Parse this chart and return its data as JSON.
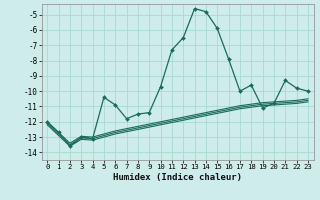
{
  "xlabel": "Humidex (Indice chaleur)",
  "xlim": [
    -0.5,
    23.5
  ],
  "ylim": [
    -14.5,
    -4.3
  ],
  "yticks": [
    -14,
    -13,
    -12,
    -11,
    -10,
    -9,
    -8,
    -7,
    -6,
    -5
  ],
  "xticks": [
    0,
    1,
    2,
    3,
    4,
    5,
    6,
    7,
    8,
    9,
    10,
    11,
    12,
    13,
    14,
    15,
    16,
    17,
    18,
    19,
    20,
    21,
    22,
    23
  ],
  "bg_color": "#ceecea",
  "grid_color": "#aad8d4",
  "line_color": "#1a6b5a",
  "main_line_x": [
    0,
    1,
    2,
    3,
    4,
    5,
    6,
    7,
    8,
    9,
    10,
    11,
    12,
    13,
    14,
    15,
    16,
    17,
    18,
    19,
    20,
    21,
    22,
    23
  ],
  "main_line_y": [
    -12.0,
    -12.7,
    -13.6,
    -13.0,
    -13.1,
    -10.4,
    -10.9,
    -11.8,
    -11.5,
    -11.4,
    -9.7,
    -7.3,
    -6.5,
    -4.6,
    -4.8,
    -5.9,
    -7.9,
    -10.0,
    -9.6,
    -11.1,
    -10.8,
    -9.3,
    -9.8,
    -10.0
  ],
  "band_lines": [
    [
      -12.0,
      -12.7,
      -13.4,
      -12.95,
      -13.0,
      -12.8,
      -12.6,
      -12.45,
      -12.3,
      -12.15,
      -12.0,
      -11.85,
      -11.7,
      -11.55,
      -11.4,
      -11.25,
      -11.1,
      -10.95,
      -10.85,
      -10.75,
      -10.7,
      -10.65,
      -10.6,
      -10.5
    ],
    [
      -12.1,
      -12.8,
      -13.5,
      -13.05,
      -13.1,
      -12.9,
      -12.7,
      -12.55,
      -12.4,
      -12.25,
      -12.1,
      -11.95,
      -11.8,
      -11.65,
      -11.5,
      -11.35,
      -11.2,
      -11.05,
      -10.95,
      -10.85,
      -10.8,
      -10.75,
      -10.7,
      -10.6
    ],
    [
      -12.2,
      -12.9,
      -13.6,
      -13.15,
      -13.2,
      -13.0,
      -12.8,
      -12.65,
      -12.5,
      -12.35,
      -12.2,
      -12.05,
      -11.9,
      -11.75,
      -11.6,
      -11.45,
      -11.3,
      -11.15,
      -11.05,
      -10.95,
      -10.9,
      -10.85,
      -10.8,
      -10.7
    ]
  ]
}
